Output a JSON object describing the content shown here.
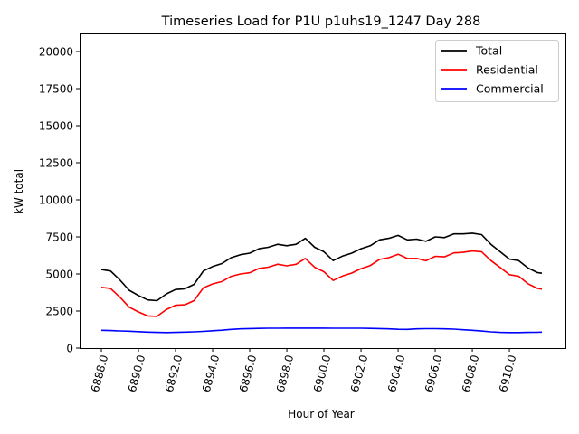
{
  "chart_data": {
    "type": "line",
    "title": "Timeseries Load for P1U p1uhs19_1247  Day 288",
    "xlabel": "Hour of Year",
    "ylabel": "kW total",
    "xlim": [
      6886.83,
      6913.02
    ],
    "ylim": [
      0,
      21220
    ],
    "xticks": [
      "6888.0",
      "6890.0",
      "6892.0",
      "6894.0",
      "6896.0",
      "6898.0",
      "6900.0",
      "6902.0",
      "6904.0",
      "6906.0",
      "6908.0",
      "6910.0"
    ],
    "xtick_values": [
      6888,
      6890,
      6892,
      6894,
      6896,
      6898,
      6900,
      6902,
      6904,
      6906,
      6908,
      6910
    ],
    "yticks": [
      "0",
      "2500",
      "5000",
      "7500",
      "10000",
      "12500",
      "15000",
      "17500",
      "20000"
    ],
    "ytick_values": [
      0,
      2500,
      5000,
      7500,
      10000,
      12500,
      15000,
      17500,
      20000
    ],
    "grid": false,
    "legend_position": "top-right",
    "x": [
      6888,
      6888.5,
      6889,
      6889.5,
      6890,
      6890.5,
      6891,
      6891.5,
      6892,
      6892.5,
      6893,
      6893.5,
      6894,
      6894.5,
      6895,
      6895.5,
      6896,
      6896.5,
      6897,
      6897.5,
      6898,
      6898.5,
      6899,
      6899.5,
      6900,
      6900.5,
      6901,
      6901.5,
      6902,
      6902.5,
      6903,
      6903.5,
      6904,
      6904.5,
      6905,
      6905.5,
      6906,
      6906.5,
      6907,
      6907.5,
      6908,
      6908.5,
      6909,
      6909.5,
      6910,
      6910.5,
      6911,
      6911.5,
      6911.75
    ],
    "series": [
      {
        "name": "Total",
        "color": "#000000",
        "values": [
          5300,
          5200,
          4600,
          3900,
          3550,
          3250,
          3200,
          3650,
          3950,
          4000,
          4300,
          5200,
          5500,
          5700,
          6100,
          6300,
          6400,
          6700,
          6800,
          7000,
          6900,
          7000,
          7400,
          6800,
          6500,
          5900,
          6200,
          6400,
          6700,
          6900,
          7300,
          7400,
          7600,
          7300,
          7350,
          7200,
          7500,
          7450,
          7700,
          7700,
          7750,
          7650,
          7000,
          6500,
          6000,
          5900,
          5400,
          5100,
          5050
        ]
      },
      {
        "name": "Residential",
        "color": "#ff0000",
        "values": [
          4100,
          4020,
          3440,
          2760,
          2440,
          2170,
          2140,
          2600,
          2890,
          2920,
          3200,
          4070,
          4330,
          4490,
          4840,
          5000,
          5080,
          5370,
          5460,
          5660,
          5550,
          5650,
          6050,
          5450,
          5150,
          4560,
          4860,
          5060,
          5360,
          5570,
          5980,
          6100,
          6330,
          6040,
          6050,
          5890,
          6190,
          6150,
          6420,
          6460,
          6550,
          6500,
          5900,
          5440,
          4950,
          4850,
          4340,
          4030,
          3970
        ]
      },
      {
        "name": "Commercial",
        "color": "#0000ff",
        "values": [
          1200,
          1180,
          1160,
          1140,
          1110,
          1080,
          1060,
          1050,
          1060,
          1080,
          1100,
          1130,
          1170,
          1210,
          1260,
          1300,
          1320,
          1330,
          1340,
          1340,
          1350,
          1350,
          1350,
          1350,
          1350,
          1340,
          1340,
          1340,
          1340,
          1330,
          1320,
          1300,
          1270,
          1260,
          1300,
          1310,
          1310,
          1300,
          1280,
          1240,
          1200,
          1150,
          1100,
          1060,
          1050,
          1050,
          1060,
          1070,
          1080
        ]
      }
    ]
  }
}
